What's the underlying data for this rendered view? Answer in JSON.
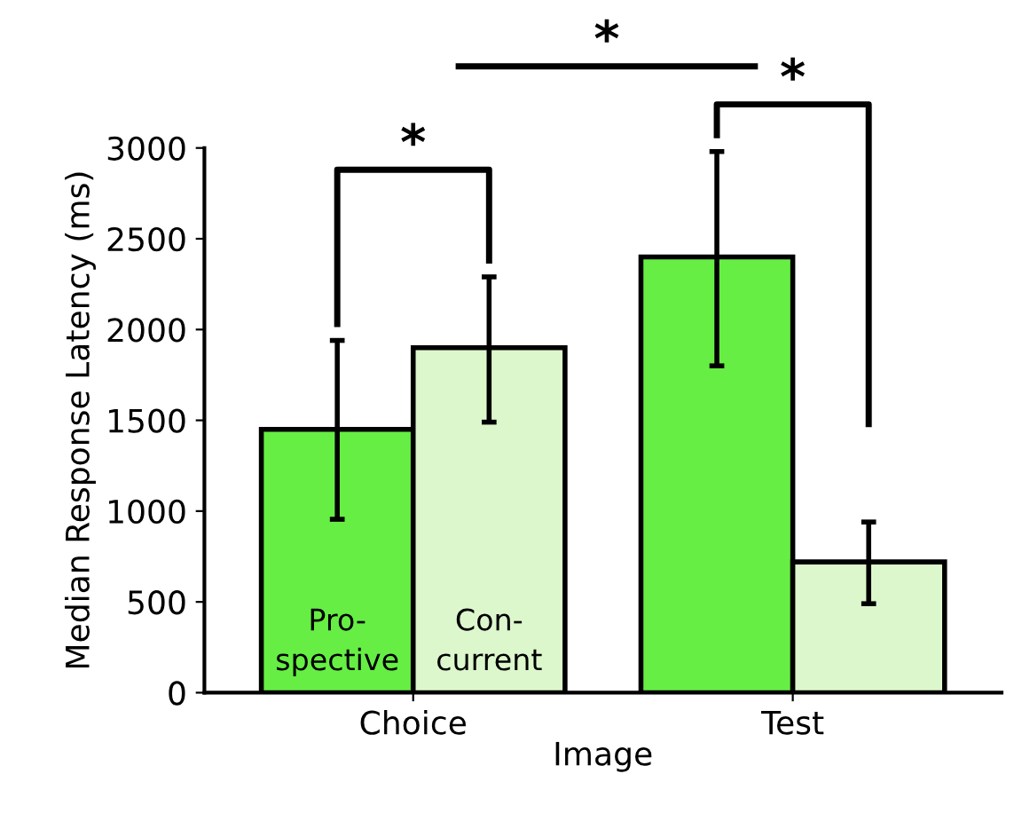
{
  "chart_data": {
    "type": "bar",
    "xlabel": "Image",
    "ylabel": "Median Response Latency (ms)",
    "categories": [
      "Choice",
      "Test"
    ],
    "series": [
      {
        "name": "Pro-\nspective",
        "color": "#66ee44",
        "values": [
          1450,
          2400
        ],
        "errors": [
          [
            955,
            1940
          ],
          [
            1800,
            2980
          ]
        ]
      },
      {
        "name": "Con-\ncurrent",
        "color": "#dcf7cc",
        "values": [
          1900,
          720
        ],
        "errors": [
          [
            1490,
            2290
          ],
          [
            490,
            940
          ]
        ]
      }
    ],
    "ylim": [
      0,
      3000
    ],
    "yticks": [
      0,
      500,
      1000,
      1500,
      2000,
      2500,
      3000
    ],
    "grid": false,
    "annotations": [
      "*",
      "*",
      "*"
    ]
  }
}
